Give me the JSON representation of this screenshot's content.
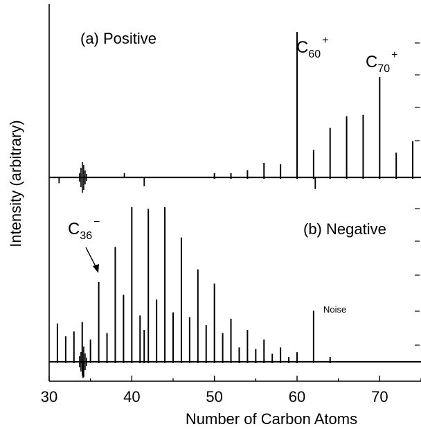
{
  "chart_data": {
    "type": "line",
    "xlabel": "Number of Carbon Atoms",
    "ylabel": "Intensity (arbitrary)",
    "xlim": [
      30,
      75
    ],
    "x_ticks": [
      30,
      40,
      50,
      60,
      70
    ],
    "x_tick_labels": [
      "30",
      "40",
      "50",
      "60",
      "70"
    ],
    "y_ticks_shown": false,
    "grid": false,
    "panels": [
      {
        "name": "positive",
        "label": "(a) Positive",
        "y_unit": "arbitrary",
        "ylim": [
          -0.1,
          1.0
        ],
        "x": [
          50,
          52,
          54,
          56,
          58,
          60,
          62,
          64,
          66,
          68,
          70,
          72,
          74
        ],
        "values": [
          0.03,
          0.03,
          0.05,
          0.1,
          0.09,
          1.0,
          0.19,
          0.34,
          0.42,
          0.43,
          0.69,
          0.17,
          0.25
        ],
        "noise_spikes": [
          {
            "x": 41.5,
            "value": -0.06
          },
          {
            "x": 62.2,
            "value": -0.08
          },
          {
            "x": 31.2,
            "value": -0.04
          },
          {
            "x": 39.1,
            "value": 0.03
          }
        ],
        "annotations": [
          {
            "name": "c60",
            "base": "C",
            "sub": "60",
            "sup": "+",
            "x": 60
          },
          {
            "name": "c70",
            "base": "C",
            "sub": "70",
            "sup": "+",
            "x": 70
          }
        ]
      },
      {
        "name": "negative",
        "label": "(b) Negative",
        "y_unit": "arbitrary",
        "ylim": [
          -0.1,
          1.0
        ],
        "x": [
          31,
          32,
          33,
          34,
          35,
          36,
          37,
          38,
          39,
          40,
          41,
          41.5,
          42,
          43,
          44,
          45,
          46,
          47,
          48,
          49,
          50,
          51,
          52,
          53,
          54,
          55,
          56,
          57,
          58,
          59,
          60,
          62,
          64
        ],
        "values": [
          0.24,
          0.16,
          0.19,
          0.25,
          0.14,
          0.5,
          0.18,
          0.72,
          0.42,
          0.97,
          0.29,
          0.2,
          0.96,
          0.39,
          0.97,
          0.31,
          0.78,
          0.28,
          0.58,
          0.23,
          0.49,
          0.18,
          0.27,
          0.09,
          0.2,
          0.08,
          0.14,
          0.05,
          0.09,
          0.03,
          0.06,
          0.32,
          0.03
        ],
        "noise_spikes": [
          {
            "x": 34.1,
            "value": -0.1
          }
        ],
        "annotations": [
          {
            "name": "c36",
            "base": "C",
            "sub": "36",
            "sup": "−",
            "x": 36
          },
          {
            "name": "noise",
            "text": "Noise",
            "x": 62.2
          }
        ]
      }
    ]
  }
}
